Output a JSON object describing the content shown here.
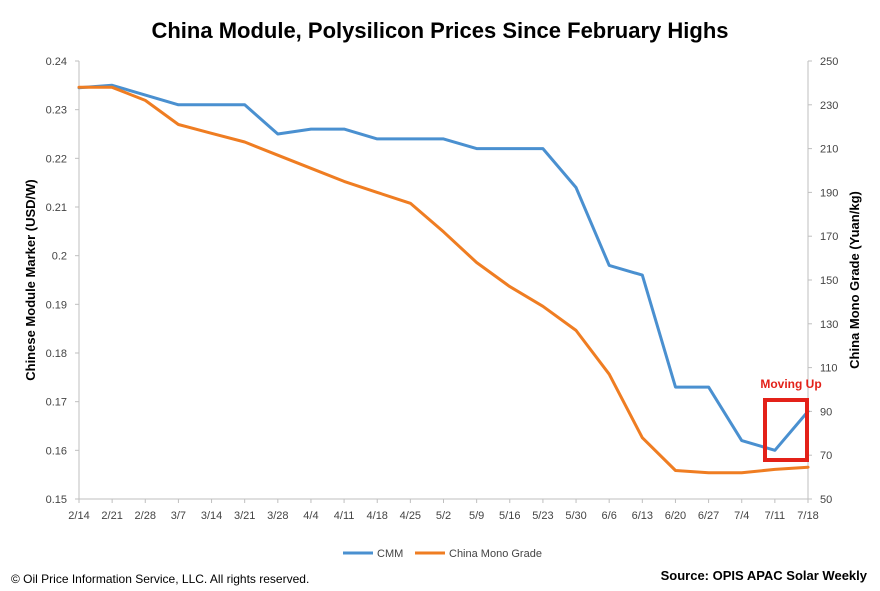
{
  "chart_data": {
    "type": "line",
    "title": "China Module, Polysilicon Prices Since February Highs",
    "categories": [
      "2/14",
      "2/21",
      "2/28",
      "3/7",
      "3/14",
      "3/21",
      "3/28",
      "4/4",
      "4/11",
      "4/18",
      "4/25",
      "5/2",
      "5/9",
      "5/16",
      "5/23",
      "5/30",
      "6/6",
      "6/13",
      "6/20",
      "6/27",
      "7/4",
      "7/11",
      "7/18"
    ],
    "y_left": {
      "label": "Chinese Module Marker (USD/W)",
      "range": [
        0.15,
        0.24
      ],
      "ticks": [
        "0.15",
        "0.16",
        "0.17",
        "0.18",
        "0.19",
        "0.2",
        "0.21",
        "0.22",
        "0.23",
        "0.24"
      ]
    },
    "y_right": {
      "label": "China Mono Grade (Yuan/kg)",
      "range": [
        50,
        250
      ],
      "ticks": [
        "50",
        "70",
        "90",
        "110",
        "130",
        "150",
        "170",
        "190",
        "210",
        "230",
        "250"
      ]
    },
    "series": [
      {
        "name": "CMM",
        "axis": "left",
        "color": "#4a90d0",
        "values": [
          0.2345,
          0.235,
          0.233,
          0.231,
          0.231,
          0.231,
          0.225,
          0.226,
          0.226,
          0.224,
          0.224,
          0.224,
          0.222,
          0.222,
          0.222,
          0.214,
          0.198,
          0.196,
          0.173,
          0.173,
          0.162,
          0.16,
          0.168
        ]
      },
      {
        "name": "China Mono Grade",
        "axis": "right",
        "color": "#ef7d22",
        "values": [
          238,
          238,
          232,
          221,
          217,
          213,
          207,
          201,
          195,
          190,
          185,
          172,
          158,
          147,
          138,
          127,
          107,
          78,
          63,
          62,
          62,
          63.5,
          64.5
        ]
      }
    ],
    "annotation": {
      "text": "Moving Up",
      "color": "#e32119"
    },
    "grid": false,
    "legend_position": "bottom"
  },
  "footer": {
    "copyright": "© Oil Price Information Service, LLC.  All rights reserved.",
    "source": "Source: OPIS APAC Solar Weekly"
  }
}
